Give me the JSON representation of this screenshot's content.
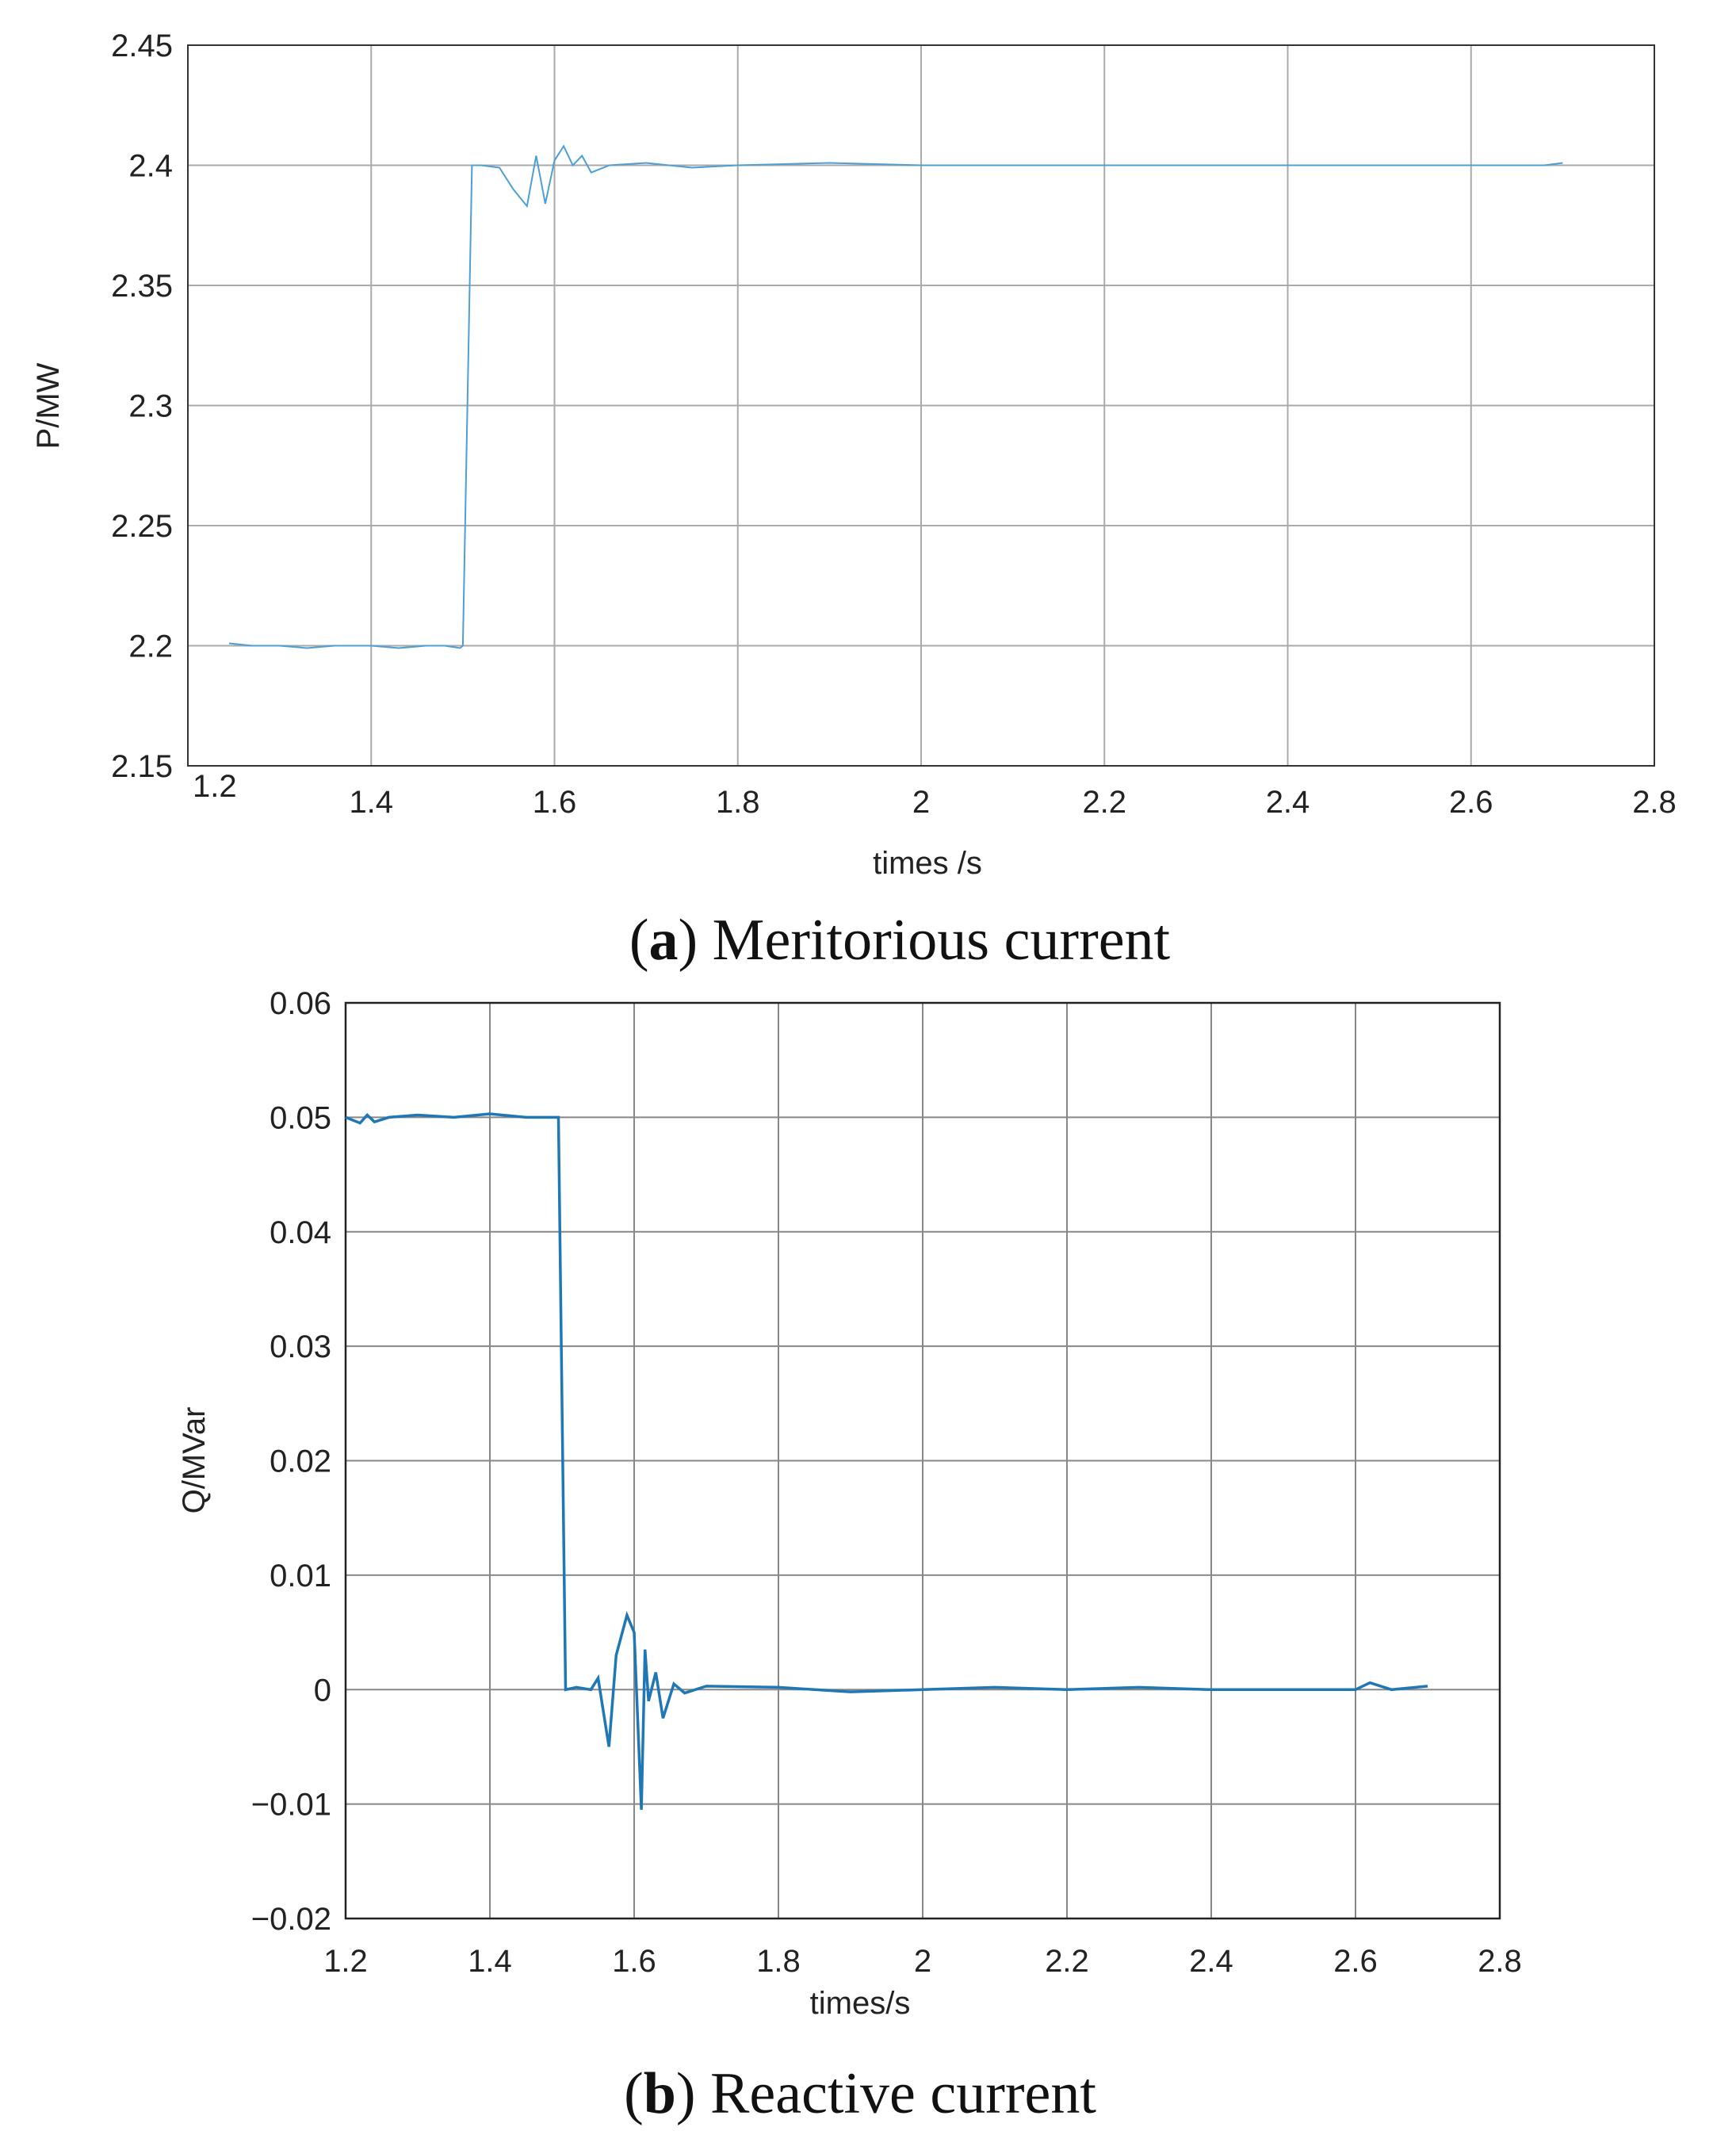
{
  "chart_data": [
    {
      "type": "line",
      "panel_letter": "a",
      "caption": "Meritorious current",
      "xlabel": "times /s",
      "ylabel": "P/MW",
      "xlim": [
        1.2,
        2.8
      ],
      "ylim": [
        2.15,
        2.45
      ],
      "xticks": [
        1.2,
        1.4,
        1.6,
        1.8,
        2,
        2.2,
        2.4,
        2.6,
        2.8
      ],
      "xtick_labels": [
        "1.2",
        "1.4",
        "1.6",
        "1.8",
        "2",
        "2.2",
        "2.4",
        "2.6",
        "2.8"
      ],
      "yticks": [
        2.15,
        2.2,
        2.25,
        2.3,
        2.35,
        2.4,
        2.45
      ],
      "ytick_labels": [
        "2.15",
        "2.2",
        "2.25",
        "2.3",
        "2.35",
        "2.4",
        "2.45"
      ],
      "grid": true,
      "color": "#4d9fd6",
      "series": [
        {
          "x": [
            1.245,
            1.27,
            1.3,
            1.33,
            1.36,
            1.4,
            1.43,
            1.46,
            1.48,
            1.497,
            1.5,
            1.51,
            1.52,
            1.54,
            1.555,
            1.57,
            1.58,
            1.59,
            1.6,
            1.61,
            1.62,
            1.63,
            1.64,
            1.66,
            1.7,
            1.75,
            1.8,
            1.9,
            2.0,
            2.1,
            2.2,
            2.3,
            2.4,
            2.5,
            2.6,
            2.64,
            2.68,
            2.7
          ],
          "y": [
            2.201,
            2.2,
            2.2,
            2.199,
            2.2,
            2.2,
            2.199,
            2.2,
            2.2,
            2.199,
            2.2,
            2.4,
            2.4,
            2.399,
            2.39,
            2.383,
            2.404,
            2.384,
            2.402,
            2.408,
            2.4,
            2.404,
            2.397,
            2.4,
            2.401,
            2.399,
            2.4,
            2.401,
            2.4,
            2.4,
            2.4,
            2.4,
            2.4,
            2.4,
            2.4,
            2.4,
            2.4,
            2.401
          ]
        }
      ]
    },
    {
      "type": "line",
      "panel_letter": "b",
      "caption": "Reactive current",
      "xlabel": "times/s",
      "ylabel": "Q/MVar",
      "xlim": [
        1.2,
        2.8
      ],
      "ylim": [
        -0.02,
        0.06
      ],
      "xticks": [
        1.2,
        1.4,
        1.6,
        1.8,
        2,
        2.2,
        2.4,
        2.6,
        2.8
      ],
      "xtick_labels": [
        "1.2",
        "1.4",
        "1.6",
        "1.8",
        "2",
        "2.2",
        "2.4",
        "2.6",
        "2.8"
      ],
      "yticks": [
        -0.02,
        -0.01,
        0,
        0.01,
        0.02,
        0.03,
        0.04,
        0.05,
        0.06
      ],
      "ytick_labels": [
        "−0.02",
        "−0.01",
        "0",
        "0.01",
        "0.02",
        "0.03",
        "0.04",
        "0.05",
        "0.06"
      ],
      "grid": true,
      "color": "#1f77b4",
      "series": [
        {
          "x": [
            1.2,
            1.22,
            1.23,
            1.24,
            1.26,
            1.3,
            1.35,
            1.4,
            1.45,
            1.48,
            1.495,
            1.505,
            1.52,
            1.54,
            1.55,
            1.565,
            1.575,
            1.59,
            1.6,
            1.61,
            1.615,
            1.62,
            1.63,
            1.64,
            1.655,
            1.67,
            1.7,
            1.8,
            1.9,
            2.0,
            2.1,
            2.2,
            2.3,
            2.4,
            2.5,
            2.6,
            2.62,
            2.65,
            2.7
          ],
          "y": [
            0.05,
            0.0495,
            0.0502,
            0.0496,
            0.05,
            0.0502,
            0.05,
            0.0503,
            0.05,
            0.05,
            0.05,
            0.0,
            0.0002,
            0.0,
            0.001,
            -0.005,
            0.003,
            0.0065,
            0.005,
            -0.0105,
            0.0035,
            -0.001,
            0.0015,
            -0.0025,
            0.0005,
            -0.0003,
            0.0003,
            0.0002,
            -0.0002,
            0.0,
            0.0002,
            0.0,
            0.0002,
            0.0,
            0.0,
            0.0,
            0.0006,
            0.0,
            0.0003
          ]
        }
      ]
    }
  ]
}
